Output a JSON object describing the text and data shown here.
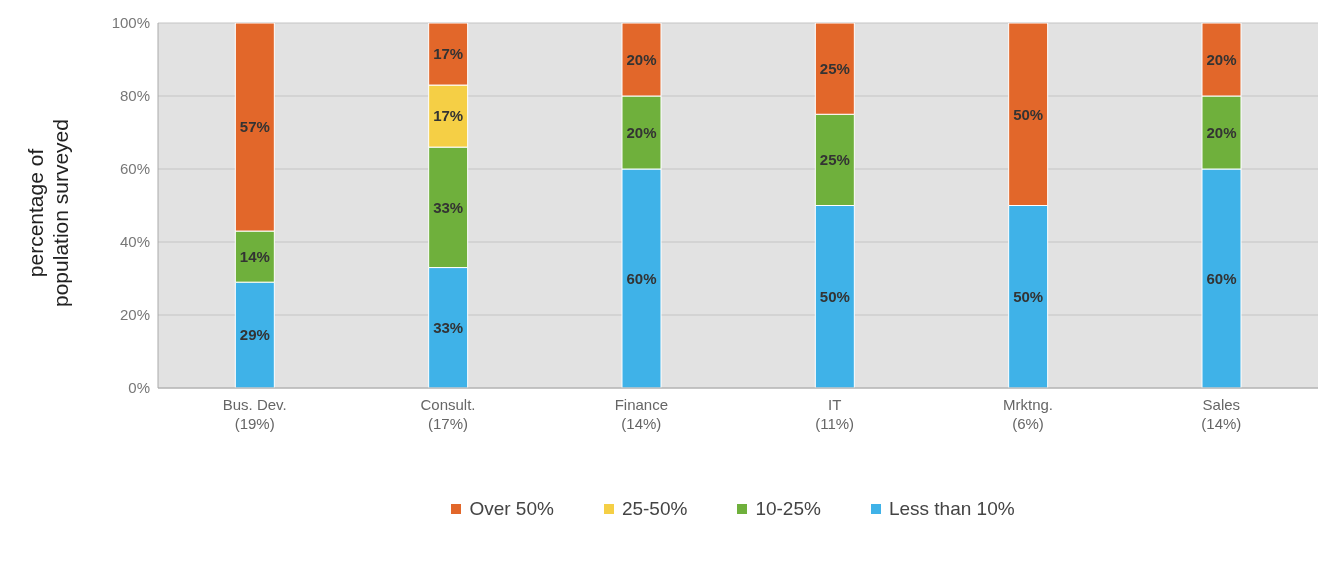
{
  "chart_data": {
    "type": "bar",
    "stacked": true,
    "ylabel": "percentage of\npopulation surveyed",
    "categories": [
      "Bus. Dev.\n(19%)",
      "Consult.\n(17%)",
      "Finance\n(14%)",
      "IT\n(11%)",
      "Mrktng.\n(6%)",
      "Sales\n(14%)"
    ],
    "series": [
      {
        "name": "Less than 10%",
        "color": "#3fb2e8",
        "values": [
          29,
          33,
          60,
          50,
          50,
          60
        ],
        "value_labels": [
          "29%",
          "33%",
          "60%",
          "50%",
          "50%",
          "60%"
        ]
      },
      {
        "name": "10-25%",
        "color": "#6fb03c",
        "values": [
          14,
          33,
          20,
          25,
          null,
          20
        ],
        "value_labels": [
          "14%",
          "33%",
          "20%",
          "25%",
          null,
          "20%"
        ]
      },
      {
        "name": "25-50%",
        "color": "#f5cf45",
        "values": [
          null,
          17,
          null,
          null,
          null,
          null
        ],
        "value_labels": [
          null,
          "17%",
          null,
          null,
          null,
          null
        ]
      },
      {
        "name": "Over 50%",
        "color": "#e2672a",
        "values": [
          57,
          17,
          20,
          25,
          50,
          20
        ],
        "value_labels": [
          "57%",
          "17%",
          "20%",
          "25%",
          "50%",
          "20%"
        ]
      }
    ],
    "ylim": [
      0,
      100
    ],
    "yticks": [
      {
        "value": 0,
        "label": "0%"
      },
      {
        "value": 20,
        "label": "20%"
      },
      {
        "value": 40,
        "label": "40%"
      },
      {
        "value": 60,
        "label": "60%"
      },
      {
        "value": 80,
        "label": "80%"
      },
      {
        "value": 100,
        "label": "100%"
      }
    ],
    "grid": "y",
    "legend": "bottom"
  }
}
